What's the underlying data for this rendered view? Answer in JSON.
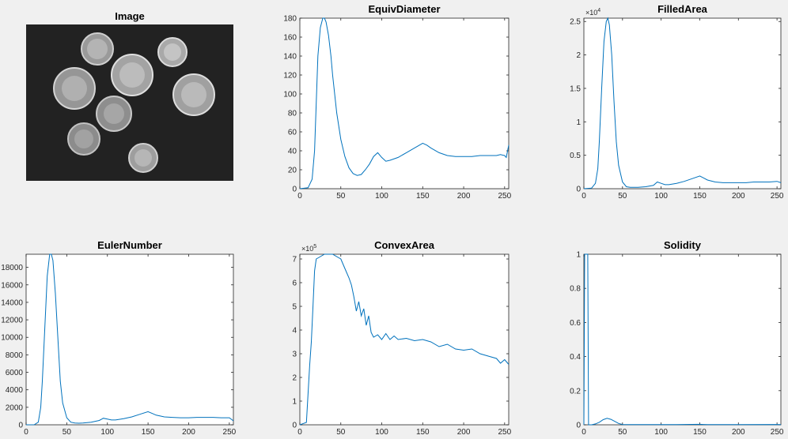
{
  "image_panel": {
    "title": "Image"
  },
  "chart_data": [
    {
      "type": "line",
      "title": "EquivDiameter",
      "xlim": [
        0,
        255
      ],
      "ylim": [
        0,
        180
      ],
      "xticks": [
        0,
        50,
        100,
        150,
        200,
        250
      ],
      "yticks": [
        0,
        20,
        40,
        60,
        80,
        100,
        120,
        140,
        160,
        180
      ],
      "x": [
        0,
        10,
        15,
        18,
        20,
        22,
        25,
        28,
        30,
        32,
        35,
        38,
        40,
        45,
        50,
        55,
        60,
        65,
        70,
        75,
        80,
        85,
        90,
        95,
        100,
        105,
        110,
        120,
        130,
        140,
        150,
        155,
        160,
        170,
        180,
        190,
        200,
        210,
        220,
        230,
        240,
        245,
        250,
        252,
        255
      ],
      "values": [
        0,
        1,
        10,
        40,
        90,
        140,
        170,
        180,
        180,
        176,
        162,
        140,
        120,
        80,
        52,
        34,
        22,
        16,
        14,
        15,
        20,
        26,
        34,
        38,
        33,
        29,
        30,
        33,
        38,
        43,
        48,
        46,
        43,
        38,
        35,
        34,
        34,
        34,
        35,
        35,
        35,
        36,
        35,
        33,
        46
      ]
    },
    {
      "type": "line",
      "title": "FilledArea",
      "exponent_label": "10",
      "exponent_power": "4",
      "xlim": [
        0,
        255
      ],
      "ylim": [
        0,
        2.55
      ],
      "xticks": [
        0,
        50,
        100,
        150,
        200,
        250
      ],
      "yticks": [
        0,
        0.5,
        1,
        1.5,
        2,
        2.5
      ],
      "x": [
        0,
        10,
        15,
        18,
        20,
        23,
        26,
        29,
        31,
        33,
        36,
        39,
        42,
        45,
        50,
        55,
        60,
        70,
        80,
        90,
        95,
        100,
        105,
        110,
        120,
        130,
        140,
        150,
        155,
        160,
        170,
        180,
        190,
        200,
        210,
        220,
        230,
        240,
        250,
        255
      ],
      "values": [
        0,
        0.01,
        0.08,
        0.3,
        0.7,
        1.5,
        2.2,
        2.5,
        2.55,
        2.45,
        2.0,
        1.3,
        0.7,
        0.35,
        0.1,
        0.03,
        0.02,
        0.02,
        0.03,
        0.05,
        0.1,
        0.08,
        0.06,
        0.06,
        0.08,
        0.11,
        0.15,
        0.19,
        0.16,
        0.13,
        0.1,
        0.09,
        0.09,
        0.09,
        0.09,
        0.1,
        0.1,
        0.1,
        0.11,
        0.09
      ]
    },
    {
      "type": "line",
      "title": "EulerNumber",
      "xlim": [
        0,
        255
      ],
      "ylim": [
        0,
        19500
      ],
      "xticks": [
        0,
        50,
        100,
        150,
        200,
        250
      ],
      "yticks": [
        0,
        2000,
        4000,
        6000,
        8000,
        10000,
        12000,
        14000,
        16000,
        18000
      ],
      "x": [
        0,
        10,
        15,
        18,
        20,
        23,
        26,
        29,
        31,
        33,
        36,
        39,
        42,
        45,
        50,
        55,
        60,
        65,
        70,
        80,
        90,
        95,
        100,
        105,
        110,
        120,
        130,
        140,
        150,
        155,
        160,
        170,
        180,
        190,
        200,
        210,
        220,
        230,
        240,
        250,
        255
      ],
      "values": [
        0,
        5,
        300,
        2000,
        5000,
        11000,
        17000,
        19500,
        19500,
        18800,
        15000,
        10000,
        5000,
        2500,
        800,
        300,
        200,
        180,
        200,
        300,
        500,
        750,
        650,
        550,
        550,
        700,
        900,
        1200,
        1500,
        1300,
        1100,
        900,
        850,
        800,
        800,
        850,
        850,
        850,
        800,
        800,
        450
      ]
    },
    {
      "type": "line",
      "title": "ConvexArea",
      "exponent_label": "10",
      "exponent_power": "5",
      "xlim": [
        0,
        255
      ],
      "ylim": [
        0,
        7.2
      ],
      "xticks": [
        0,
        50,
        100,
        150,
        200,
        250
      ],
      "yticks": [
        0,
        1,
        2,
        3,
        4,
        5,
        6,
        7
      ],
      "x": [
        0,
        8,
        12,
        14,
        16,
        18,
        20,
        25,
        30,
        40,
        50,
        55,
        60,
        63,
        66,
        69,
        72,
        75,
        78,
        81,
        84,
        87,
        90,
        95,
        100,
        105,
        110,
        115,
        120,
        130,
        140,
        150,
        160,
        170,
        180,
        190,
        200,
        210,
        220,
        230,
        240,
        245,
        250,
        255
      ],
      "values": [
        0,
        0.1,
        2.5,
        3.5,
        5.0,
        6.5,
        7.0,
        7.1,
        7.2,
        7.2,
        7.0,
        6.6,
        6.2,
        5.9,
        5.4,
        4.8,
        5.2,
        4.6,
        4.9,
        4.2,
        4.6,
        3.9,
        3.7,
        3.8,
        3.6,
        3.85,
        3.6,
        3.75,
        3.6,
        3.65,
        3.55,
        3.6,
        3.5,
        3.3,
        3.4,
        3.2,
        3.15,
        3.2,
        3.0,
        2.9,
        2.8,
        2.6,
        2.75,
        2.55
      ]
    },
    {
      "type": "line",
      "title": "Solidity",
      "xlim": [
        0,
        255
      ],
      "ylim": [
        0,
        1
      ],
      "xticks": [
        0,
        50,
        100,
        150,
        200,
        250
      ],
      "yticks": [
        0,
        0.2,
        0.4,
        0.6,
        0.8,
        1
      ],
      "x": [
        0,
        1,
        2,
        3,
        4,
        5,
        6,
        10,
        15,
        20,
        25,
        30,
        35,
        40,
        45,
        50,
        60,
        80,
        100,
        120,
        150,
        155,
        160,
        200,
        250,
        255
      ],
      "values": [
        0,
        1,
        1,
        1,
        1,
        1,
        0,
        0,
        0.005,
        0.015,
        0.03,
        0.038,
        0.032,
        0.02,
        0.008,
        0.002,
        0.001,
        0.001,
        0.001,
        0.001,
        0.003,
        0.002,
        0.001,
        0.001,
        0.002,
        0.001
      ]
    }
  ]
}
